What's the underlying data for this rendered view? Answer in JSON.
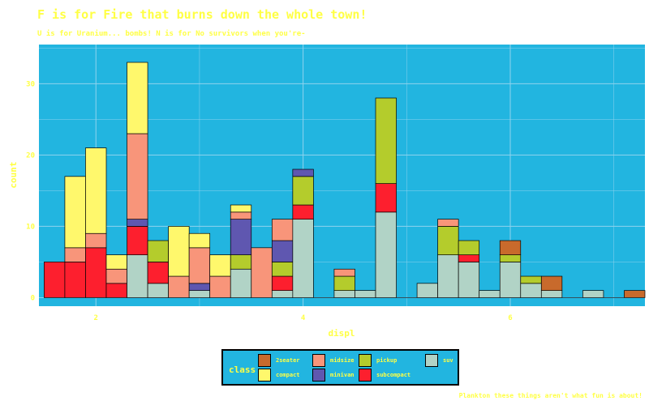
{
  "chart_data": {
    "type": "bar",
    "stacked": true,
    "title": "F is for Fire that burns down the whole town!",
    "subtitle": "U is for Uranium... bombs! N is for No survivors when you're-",
    "caption": "Plankton these things aren't what fun is about!",
    "xlabel": "displ",
    "ylabel": "count",
    "xlim": [
      1.45,
      7.3
    ],
    "ylim": [
      -1.2,
      35.5
    ],
    "xticks": [
      2,
      4,
      6
    ],
    "yticks": [
      0,
      10,
      20,
      30
    ],
    "grid": true,
    "bin_width": 0.2,
    "legend_title": "class",
    "legend_position": "bottom",
    "series": [
      {
        "name": "2seater",
        "color": "#c86a2c"
      },
      {
        "name": "compact",
        "color": "#fff86c"
      },
      {
        "name": "midsize",
        "color": "#f8957a"
      },
      {
        "name": "minivan",
        "color": "#5f57b0"
      },
      {
        "name": "pickup",
        "color": "#b4cc2c"
      },
      {
        "name": "subcompact",
        "color": "#fd1f2e"
      },
      {
        "name": "suv",
        "color": "#b1d3c6"
      }
    ],
    "bins": [
      {
        "x": 1.6,
        "2seater": 0,
        "compact": 0,
        "midsize": 0,
        "minivan": 0,
        "pickup": 0,
        "subcompact": 5,
        "suv": 0
      },
      {
        "x": 1.8,
        "2seater": 0,
        "compact": 10,
        "midsize": 2,
        "minivan": 0,
        "pickup": 0,
        "subcompact": 5,
        "suv": 0
      },
      {
        "x": 2.0,
        "2seater": 0,
        "compact": 12,
        "midsize": 2,
        "minivan": 0,
        "pickup": 0,
        "subcompact": 7,
        "suv": 0
      },
      {
        "x": 2.2,
        "2seater": 0,
        "compact": 2,
        "midsize": 2,
        "minivan": 0,
        "pickup": 0,
        "subcompact": 2,
        "suv": 0
      },
      {
        "x": 2.4,
        "2seater": 0,
        "compact": 10,
        "midsize": 12,
        "minivan": 1,
        "pickup": 0,
        "subcompact": 4,
        "suv": 6
      },
      {
        "x": 2.6,
        "2seater": 0,
        "compact": 0,
        "midsize": 0,
        "minivan": 0,
        "pickup": 3,
        "subcompact": 3,
        "suv": 2
      },
      {
        "x": 2.8,
        "2seater": 0,
        "compact": 7,
        "midsize": 3,
        "minivan": 0,
        "pickup": 0,
        "subcompact": 0,
        "suv": 0
      },
      {
        "x": 3.0,
        "2seater": 0,
        "compact": 2,
        "midsize": 5,
        "minivan": 1,
        "pickup": 0,
        "subcompact": 0,
        "suv": 1
      },
      {
        "x": 3.2,
        "2seater": 0,
        "compact": 3,
        "midsize": 3,
        "minivan": 0,
        "pickup": 0,
        "subcompact": 0,
        "suv": 0
      },
      {
        "x": 3.4,
        "2seater": 0,
        "compact": 1,
        "midsize": 1,
        "minivan": 5,
        "pickup": 2,
        "subcompact": 0,
        "suv": 4
      },
      {
        "x": 3.6,
        "2seater": 0,
        "compact": 0,
        "midsize": 7,
        "minivan": 0,
        "pickup": 0,
        "subcompact": 0,
        "suv": 0
      },
      {
        "x": 3.8,
        "2seater": 0,
        "compact": 0,
        "midsize": 3,
        "minivan": 3,
        "pickup": 2,
        "subcompact": 2,
        "suv": 1
      },
      {
        "x": 4.0,
        "2seater": 0,
        "compact": 0,
        "midsize": 0,
        "minivan": 1,
        "pickup": 4,
        "subcompact": 2,
        "suv": 11
      },
      {
        "x": 4.2,
        "2seater": 0,
        "compact": 0,
        "midsize": 0,
        "minivan": 0,
        "pickup": 0,
        "subcompact": 0,
        "suv": 0
      },
      {
        "x": 4.4,
        "2seater": 0,
        "compact": 0,
        "midsize": 1,
        "minivan": 0,
        "pickup": 2,
        "subcompact": 0,
        "suv": 1
      },
      {
        "x": 4.6,
        "2seater": 0,
        "compact": 0,
        "midsize": 0,
        "minivan": 0,
        "pickup": 0,
        "subcompact": 0,
        "suv": 1
      },
      {
        "x": 4.8,
        "2seater": 0,
        "compact": 0,
        "midsize": 0,
        "minivan": 0,
        "pickup": 12,
        "subcompact": 4,
        "suv": 12
      },
      {
        "x": 5.0,
        "2seater": 0,
        "compact": 0,
        "midsize": 0,
        "minivan": 0,
        "pickup": 0,
        "subcompact": 0,
        "suv": 0
      },
      {
        "x": 5.2,
        "2seater": 0,
        "compact": 0,
        "midsize": 0,
        "minivan": 0,
        "pickup": 0,
        "subcompact": 0,
        "suv": 2
      },
      {
        "x": 5.4,
        "2seater": 0,
        "compact": 0,
        "midsize": 1,
        "minivan": 0,
        "pickup": 4,
        "subcompact": 0,
        "suv": 6
      },
      {
        "x": 5.6,
        "2seater": 0,
        "compact": 0,
        "midsize": 0,
        "minivan": 0,
        "pickup": 2,
        "subcompact": 1,
        "suv": 5
      },
      {
        "x": 5.8,
        "2seater": 0,
        "compact": 0,
        "midsize": 0,
        "minivan": 0,
        "pickup": 0,
        "subcompact": 0,
        "suv": 1
      },
      {
        "x": 6.0,
        "2seater": 2,
        "compact": 0,
        "midsize": 0,
        "minivan": 0,
        "pickup": 1,
        "subcompact": 0,
        "suv": 5
      },
      {
        "x": 6.2,
        "2seater": 0,
        "compact": 0,
        "midsize": 0,
        "minivan": 0,
        "pickup": 1,
        "subcompact": 0,
        "suv": 2
      },
      {
        "x": 6.4,
        "2seater": 2,
        "compact": 0,
        "midsize": 0,
        "minivan": 0,
        "pickup": 0,
        "subcompact": 0,
        "suv": 1
      },
      {
        "x": 6.6,
        "2seater": 0,
        "compact": 0,
        "midsize": 0,
        "minivan": 0,
        "pickup": 0,
        "subcompact": 0,
        "suv": 0
      },
      {
        "x": 6.8,
        "2seater": 0,
        "compact": 0,
        "midsize": 0,
        "minivan": 0,
        "pickup": 0,
        "subcompact": 0,
        "suv": 1
      },
      {
        "x": 7.0,
        "2seater": 0,
        "compact": 0,
        "midsize": 0,
        "minivan": 0,
        "pickup": 0,
        "subcompact": 0,
        "suv": 0
      },
      {
        "x": 7.2,
        "2seater": 1,
        "compact": 0,
        "midsize": 0,
        "minivan": 0,
        "pickup": 0,
        "subcompact": 0,
        "suv": 0
      }
    ],
    "colors": {
      "panel_background": "#22b5e0",
      "grid": "#8fd3ee",
      "text": "#ffff44"
    }
  }
}
